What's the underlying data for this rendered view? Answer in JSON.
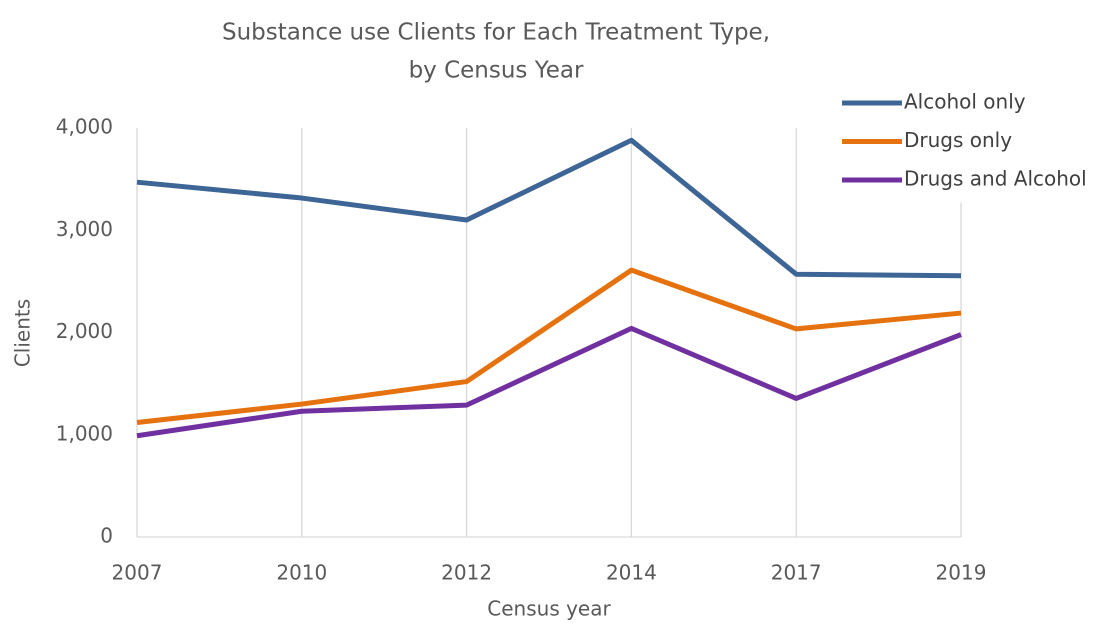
{
  "chart_data": {
    "type": "line",
    "title": [
      "Substance use Clients for Each Treatment Type,",
      "by Census Year"
    ],
    "x_label": "Census year",
    "y_label": "Clients",
    "categories": [
      "2007",
      "2010",
      "2012",
      "2014",
      "2017",
      "2019"
    ],
    "series": [
      {
        "name": "Alcohol only",
        "color": "#3d6595",
        "values": [
          3470,
          3315,
          3100,
          3880,
          2570,
          2555
        ]
      },
      {
        "name": "Drugs only",
        "color": "#e5720f",
        "values": [
          1120,
          1300,
          1520,
          2610,
          2035,
          2190
        ]
      },
      {
        "name": "Drugs and Alcohol",
        "color": "#7030a0",
        "values": [
          990,
          1230,
          1290,
          2040,
          1355,
          1980
        ]
      }
    ],
    "ylim": [
      0,
      4000
    ],
    "yticks": [
      0,
      {
        "value": 1000,
        "label": "1,000"
      },
      {
        "value": 2000,
        "label": "2,000"
      },
      {
        "value": 3000,
        "label": "3,000"
      },
      {
        "value": 4000,
        "label": "4,000"
      }
    ],
    "grid": "x",
    "legend": "top-right"
  }
}
